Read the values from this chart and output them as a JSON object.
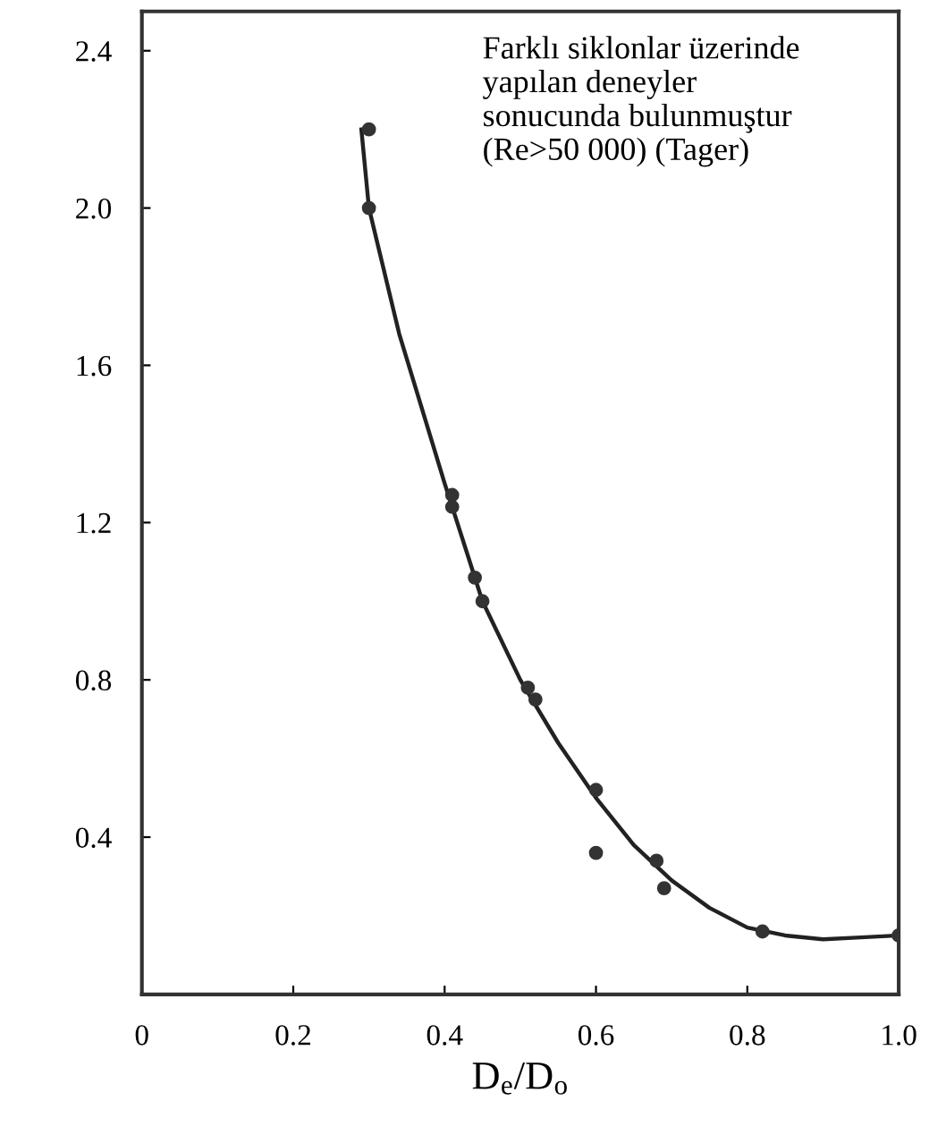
{
  "chart_data": {
    "type": "scatter",
    "xlabel": "D$_{e}$/D$_{o}$",
    "annotations": [
      "Farklı siklonlar üzerinde\nyapılan deneyler\nsonucunda bulunmuştur\n(Re>50 000) (Tager)"
    ],
    "series": [
      {
        "color": "#333333",
        "marker": "circle",
        "x": [
          0.3,
          0.3,
          0.41,
          0.41,
          0.44,
          0.45,
          0.51,
          0.52,
          0.6,
          0.6,
          0.68,
          0.69,
          0.82,
          1.0
        ],
        "values": [
          2.2,
          2.0,
          1.27,
          1.24,
          1.06,
          1.0,
          0.78,
          0.75,
          0.52,
          0.36,
          0.34,
          0.27,
          0.16,
          0.15
        ]
      },
      {
        "type": "line",
        "color": "#222222",
        "x": [
          0.29,
          0.3,
          0.34,
          0.4,
          0.45,
          0.5,
          0.55,
          0.6,
          0.65,
          0.7,
          0.75,
          0.8,
          0.85,
          0.9,
          0.95,
          1.0
        ],
        "values": [
          2.2,
          2.0,
          1.68,
          1.3,
          1.0,
          0.8,
          0.64,
          0.5,
          0.38,
          0.29,
          0.22,
          0.17,
          0.15,
          0.14,
          0.145,
          0.15
        ]
      }
    ],
    "xlim": [
      0,
      1.0
    ],
    "ylim": [
      0,
      2.5
    ],
    "xticks": [
      {
        "value": 0,
        "label": "0"
      },
      0.2,
      0.4,
      0.6,
      0.8,
      {
        "value": 1.0,
        "label": "1.0"
      }
    ],
    "yticks": [
      0.4,
      0.8,
      1.2,
      1.6,
      {
        "value": 2.0,
        "label": "2.0"
      },
      2.4
    ],
    "grid": false,
    "legend": false
  }
}
